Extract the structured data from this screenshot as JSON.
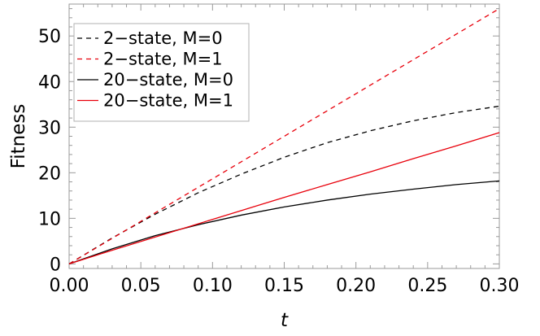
{
  "chart_data": {
    "type": "line",
    "title": "",
    "xlabel": "t",
    "ylabel": "Fitness",
    "xlim": [
      0,
      0.3
    ],
    "ylim": [
      -1,
      57
    ],
    "x_ticks": [
      0.0,
      0.05,
      0.1,
      0.15,
      0.2,
      0.25,
      0.3
    ],
    "x_tick_labels": [
      "0.00",
      "0.05",
      "0.10",
      "0.15",
      "0.20",
      "0.25",
      "0.30"
    ],
    "y_ticks": [
      0,
      10,
      20,
      30,
      40,
      50
    ],
    "y_tick_labels": [
      "0",
      "10",
      "20",
      "30",
      "40",
      "50"
    ],
    "grid": false,
    "legend_position": "top-left",
    "x": [
      0.0,
      0.03,
      0.06,
      0.09,
      0.12,
      0.15,
      0.18,
      0.21,
      0.24,
      0.27,
      0.3
    ],
    "series": [
      {
        "name": "2−state, M=0",
        "color": "#000000",
        "dash": "dashed",
        "values": [
          0,
          5.7,
          10.9,
          15.6,
          19.7,
          23.4,
          26.6,
          29.2,
          31.4,
          33.2,
          34.6
        ]
      },
      {
        "name": "2−state, M=1",
        "color": "#e8000b",
        "dash": "dashed",
        "values": [
          0,
          5.6,
          11.2,
          16.8,
          22.4,
          28.0,
          33.6,
          39.2,
          44.8,
          50.4,
          56.0
        ]
      },
      {
        "name": "20−state, M=0",
        "color": "#000000",
        "dash": "solid",
        "values": [
          0,
          3.3,
          6.2,
          8.6,
          10.7,
          12.5,
          14.0,
          15.3,
          16.4,
          17.4,
          18.2
        ]
      },
      {
        "name": "20−state, M=1",
        "color": "#e8000b",
        "dash": "solid",
        "values": [
          0,
          3.0,
          5.9,
          8.8,
          11.7,
          14.6,
          17.4,
          20.2,
          23.1,
          25.9,
          28.8
        ]
      }
    ]
  }
}
